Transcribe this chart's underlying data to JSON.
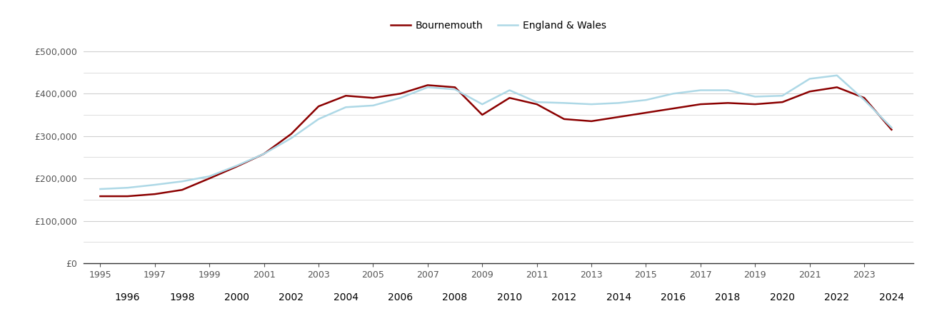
{
  "years": [
    1995,
    1996,
    1997,
    1998,
    1999,
    2000,
    2001,
    2002,
    2003,
    2004,
    2005,
    2006,
    2007,
    2008,
    2009,
    2010,
    2011,
    2012,
    2013,
    2014,
    2015,
    2016,
    2017,
    2018,
    2019,
    2020,
    2021,
    2022,
    2023,
    2024
  ],
  "bournemouth": [
    158000,
    158000,
    163000,
    173000,
    200000,
    228000,
    258000,
    305000,
    370000,
    395000,
    390000,
    400000,
    420000,
    415000,
    350000,
    390000,
    375000,
    340000,
    335000,
    345000,
    355000,
    365000,
    375000,
    378000,
    375000,
    380000,
    405000,
    415000,
    390000,
    315000
  ],
  "england_wales": [
    175000,
    178000,
    185000,
    193000,
    205000,
    230000,
    258000,
    295000,
    340000,
    368000,
    372000,
    390000,
    415000,
    410000,
    375000,
    408000,
    380000,
    378000,
    375000,
    378000,
    385000,
    400000,
    408000,
    408000,
    393000,
    395000,
    435000,
    443000,
    385000,
    320000
  ],
  "bournemouth_color": "#8B0000",
  "england_wales_color": "#add8e6",
  "background_color": "#ffffff",
  "grid_color": "#d0d0d0",
  "major_yticks": [
    0,
    100000,
    200000,
    300000,
    400000,
    500000
  ],
  "minor_yticks": [
    50000,
    150000,
    250000,
    350000,
    450000
  ],
  "ylim": [
    0,
    530000
  ],
  "legend_labels": [
    "Bournemouth",
    "England & Wales"
  ],
  "line_width": 1.8,
  "odd_years": [
    1995,
    1997,
    1999,
    2001,
    2003,
    2005,
    2007,
    2009,
    2011,
    2013,
    2015,
    2017,
    2019,
    2021,
    2023
  ],
  "even_years": [
    1996,
    1998,
    2000,
    2002,
    2004,
    2006,
    2008,
    2010,
    2012,
    2014,
    2016,
    2018,
    2020,
    2022,
    2024
  ],
  "xlim": [
    1994.4,
    2024.8
  ]
}
